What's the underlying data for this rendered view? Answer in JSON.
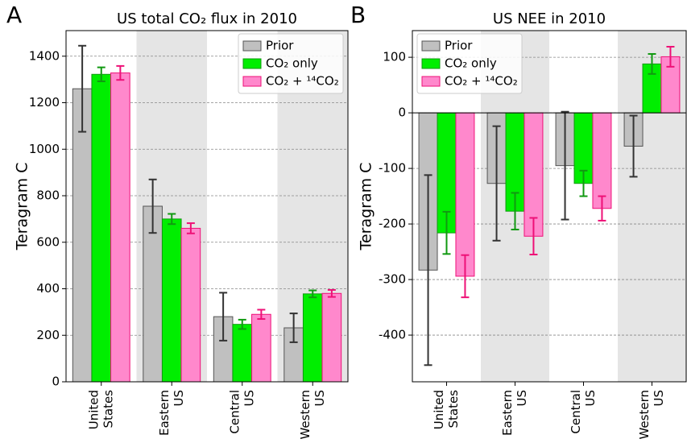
{
  "chart_data": [
    {
      "type": "bar",
      "label": "A",
      "title": "US total CO₂ flux in 2010",
      "ylabel": "Teragram C",
      "categories": [
        [
          "United",
          "States"
        ],
        [
          "Eastern",
          "US"
        ],
        [
          "Central",
          "US"
        ],
        [
          "Western",
          "US"
        ]
      ],
      "series": [
        {
          "name": "Prior",
          "color": "#c0c0c0",
          "edge": "#555555",
          "error_color": "#333333",
          "values": [
            1260,
            755,
            280,
            232
          ],
          "errors": [
            185,
            115,
            103,
            62
          ]
        },
        {
          "name": "CO₂ only",
          "color": "#00ee00",
          "edge": "#119911",
          "error_color": "#119911",
          "values": [
            1322,
            700,
            247,
            378
          ],
          "errors": [
            30,
            22,
            20,
            15
          ]
        },
        {
          "name": "CO₂ + ¹⁴CO₂",
          "color": "#ff88cc",
          "edge": "#ee1177",
          "error_color": "#ee1177",
          "values": [
            1328,
            660,
            290,
            380
          ],
          "errors": [
            30,
            22,
            20,
            15
          ]
        }
      ],
      "ylim": [
        0,
        1510
      ],
      "yticks": [
        0,
        200,
        400,
        600,
        800,
        1000,
        1200,
        1400
      ],
      "grid": true,
      "legend": "upper right"
    },
    {
      "type": "bar",
      "label": "B",
      "title": "US NEE in 2010",
      "ylabel": "Teragram C",
      "categories": [
        [
          "United",
          "States"
        ],
        [
          "Eastern",
          "US"
        ],
        [
          "Central",
          "US"
        ],
        [
          "Western",
          "US"
        ]
      ],
      "series": [
        {
          "name": "Prior",
          "color": "#c0c0c0",
          "edge": "#555555",
          "error_color": "#333333",
          "values": [
            -283,
            -127,
            -95,
            -60
          ],
          "errors": [
            171,
            103,
            97,
            55
          ]
        },
        {
          "name": "CO₂ only",
          "color": "#00ee00",
          "edge": "#119911",
          "error_color": "#119911",
          "values": [
            -216,
            -177,
            -127,
            88
          ],
          "errors": [
            38,
            33,
            23,
            18
          ]
        },
        {
          "name": "CO₂ + ¹⁴CO₂",
          "color": "#ff88cc",
          "edge": "#ee1177",
          "error_color": "#ee1177",
          "values": [
            -294,
            -222,
            -172,
            101
          ],
          "errors": [
            38,
            33,
            22,
            18
          ]
        }
      ],
      "ylim": [
        -484,
        148
      ],
      "yticks": [
        -400,
        -300,
        -200,
        -100,
        0,
        100
      ],
      "grid": true,
      "legend": "upper left"
    }
  ]
}
